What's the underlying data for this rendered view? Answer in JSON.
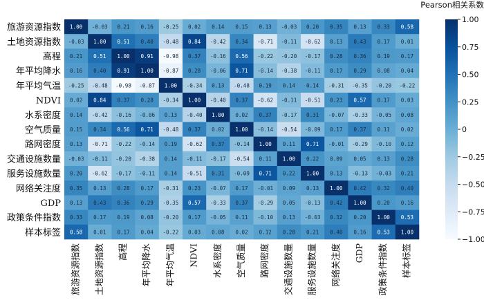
{
  "chart_data": {
    "type": "heatmap",
    "title": "",
    "colorbar_label": "Pearson相关系数",
    "colorbar_ticks": [
      "1.00",
      "0.75",
      "0.50",
      "0.25",
      "0",
      "−0.25",
      "−0.50",
      "−0.75",
      "−1.00"
    ],
    "colorbar_range": [
      -1,
      1
    ],
    "colormap": "Blues",
    "labels": [
      "旅游资源指数",
      "土地资源指数",
      "高程",
      "年平均降水",
      "年平均气温",
      "NDVI",
      "水系密度",
      "空气质量",
      "路网密度",
      "交通设施数量",
      "服务设施数量",
      "网络关注度",
      "GDP",
      "政策条件指数",
      "样本标签"
    ],
    "matrix": [
      [
        1.0,
        -0.03,
        0.21,
        0.16,
        -0.25,
        0.02,
        0.14,
        0.15,
        0.13,
        -0.03,
        0.2,
        0.35,
        0.13,
        0.33,
        0.58
      ],
      [
        -0.03,
        1.0,
        0.51,
        0.4,
        -0.48,
        0.84,
        -0.42,
        0.34,
        -0.71,
        -0.11,
        -0.62,
        0.13,
        0.43,
        0.17,
        0.01
      ],
      [
        0.21,
        0.51,
        1.0,
        0.91,
        -0.98,
        0.37,
        -0.16,
        0.56,
        -0.22,
        -0.2,
        -0.17,
        0.28,
        0.36,
        0.19,
        0.17
      ],
      [
        0.16,
        0.4,
        0.91,
        1.0,
        -0.87,
        0.28,
        -0.06,
        0.71,
        -0.14,
        -0.38,
        -0.11,
        0.17,
        0.29,
        0.08,
        0.04
      ],
      [
        -0.25,
        -0.48,
        -0.98,
        -0.87,
        1.0,
        -0.34,
        0.13,
        -0.48,
        0.19,
        0.14,
        0.14,
        -0.31,
        -0.35,
        -0.2,
        -0.22
      ],
      [
        0.02,
        0.84,
        0.37,
        0.28,
        -0.34,
        1.0,
        -0.4,
        0.37,
        -0.62,
        -0.11,
        -0.51,
        0.23,
        0.57,
        0.17,
        0.03
      ],
      [
        0.14,
        -0.42,
        -0.16,
        -0.06,
        0.13,
        -0.4,
        1.0,
        0.02,
        0.37,
        -0.17,
        0.31,
        -0.07,
        -0.33,
        -0.05,
        0.08
      ],
      [
        0.15,
        0.34,
        0.56,
        0.71,
        -0.48,
        0.37,
        0.02,
        1.0,
        -0.14,
        -0.54,
        -0.09,
        0.17,
        0.37,
        0.11,
        0.02
      ],
      [
        0.13,
        -0.71,
        -0.22,
        -0.14,
        0.19,
        -0.62,
        0.37,
        -0.14,
        1.0,
        0.11,
        0.71,
        -0.01,
        -0.29,
        -0.1,
        0.12
      ],
      [
        -0.03,
        -0.11,
        -0.2,
        -0.38,
        0.14,
        -0.11,
        -0.17,
        -0.54,
        0.11,
        1.0,
        0.22,
        0.09,
        0.05,
        0.13,
        0.28
      ],
      [
        0.2,
        -0.62,
        -0.17,
        -0.11,
        0.14,
        -0.51,
        0.31,
        -0.09,
        0.71,
        0.22,
        1.0,
        0.13,
        -0.13,
        -0.03,
        0.21
      ],
      [
        0.35,
        0.13,
        0.28,
        0.17,
        -0.31,
        0.23,
        -0.07,
        0.17,
        -0.01,
        0.09,
        0.13,
        1.0,
        0.42,
        0.32,
        0.4
      ],
      [
        0.13,
        0.43,
        0.36,
        0.29,
        -0.35,
        0.57,
        -0.33,
        0.37,
        -0.29,
        0.05,
        -0.13,
        0.42,
        1.0,
        0.2,
        0.16
      ],
      [
        0.33,
        0.17,
        0.19,
        0.08,
        -0.2,
        0.17,
        -0.05,
        0.11,
        -0.1,
        0.13,
        -0.03,
        0.32,
        0.2,
        1.0,
        0.53
      ],
      [
        0.58,
        0.01,
        0.17,
        0.04,
        -0.22,
        0.03,
        0.08,
        0.02,
        0.12,
        0.28,
        0.21,
        0.4,
        0.16,
        0.53,
        1.0
      ]
    ]
  }
}
